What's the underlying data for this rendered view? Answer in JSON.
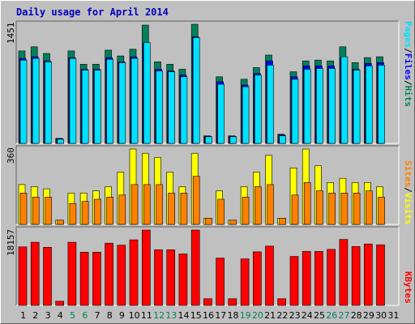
{
  "title": "Daily usage for April 2014",
  "colors": {
    "hits": "#00805c",
    "files": "#0000ff",
    "pages": "#00e0ff",
    "visits": "#ffff00",
    "sites": "#ff8000",
    "kbytes": "#ff0000",
    "weekend_day": "#00805c",
    "weekday": "#000000",
    "panel_bg": "#c0c0c0",
    "border_dark": "#606060",
    "border_light": "#ffffff"
  },
  "panels": {
    "top": {
      "ymax_label": "1451",
      "legend": [
        "Pages",
        "Files",
        "Hits"
      ]
    },
    "mid": {
      "ymax_label": "360",
      "legend": [
        "Sites",
        "Visits"
      ]
    },
    "bottom": {
      "ymax_label": "18157",
      "legend": [
        "KBytes"
      ]
    }
  },
  "chart_data": {
    "type": "bar",
    "title": "Daily usage for April 2014",
    "categories": [
      "1",
      "2",
      "3",
      "4",
      "5",
      "6",
      "7",
      "8",
      "9",
      "10",
      "11",
      "12",
      "13",
      "14",
      "15",
      "16",
      "17",
      "18",
      "19",
      "20",
      "21",
      "22",
      "23",
      "24",
      "25",
      "26",
      "27",
      "28",
      "29",
      "30",
      "31"
    ],
    "weekend_days": [
      "5",
      "6",
      "12",
      "13",
      "19",
      "20",
      "26",
      "27"
    ],
    "series": [
      {
        "name": "Hits",
        "panel": "top",
        "values": [
          1110,
          1160,
          1080,
          60,
          1110,
          950,
          950,
          1120,
          1050,
          1130,
          1420,
          980,
          950,
          890,
          1430,
          90,
          800,
          90,
          770,
          910,
          1060,
          110,
          860,
          990,
          1000,
          990,
          1160,
          970,
          1030,
          1040,
          0
        ]
      },
      {
        "name": "Files",
        "panel": "top",
        "values": [
          1020,
          1040,
          990,
          55,
          1030,
          890,
          890,
          1030,
          980,
          1040,
          1200,
          890,
          870,
          820,
          1280,
          85,
          740,
          85,
          700,
          840,
          990,
          100,
          800,
          930,
          930,
          930,
          1020,
          890,
          960,
          970,
          0
        ]
      },
      {
        "name": "Pages",
        "panel": "top",
        "values": [
          1000,
          1020,
          980,
          50,
          1020,
          880,
          880,
          1010,
          970,
          1020,
          1210,
          870,
          860,
          800,
          1270,
          80,
          710,
          80,
          680,
          820,
          940,
          90,
          770,
          890,
          900,
          900,
          1040,
          880,
          930,
          940,
          0
        ]
      },
      {
        "name": "Visits",
        "panel": "mid",
        "values": [
          190,
          180,
          170,
          20,
          150,
          150,
          160,
          180,
          250,
          360,
          340,
          320,
          250,
          180,
          340,
          30,
          160,
          20,
          180,
          250,
          330,
          30,
          270,
          360,
          280,
          200,
          220,
          200,
          200,
          180,
          0
        ]
      },
      {
        "name": "Sites",
        "panel": "mid",
        "values": [
          150,
          130,
          130,
          20,
          100,
          110,
          120,
          130,
          140,
          190,
          190,
          190,
          150,
          150,
          230,
          30,
          120,
          20,
          130,
          180,
          190,
          30,
          140,
          200,
          160,
          150,
          150,
          150,
          160,
          130,
          0
        ]
      },
      {
        "name": "KBytes",
        "panel": "bottom",
        "values": [
          14100,
          15200,
          14000,
          1000,
          15200,
          12800,
          12800,
          15000,
          14500,
          15800,
          18157,
          13400,
          13400,
          12400,
          18157,
          1600,
          11400,
          1600,
          11200,
          12900,
          14300,
          1600,
          11800,
          13000,
          13000,
          13500,
          15900,
          14200,
          14800,
          14600,
          0
        ]
      }
    ]
  }
}
